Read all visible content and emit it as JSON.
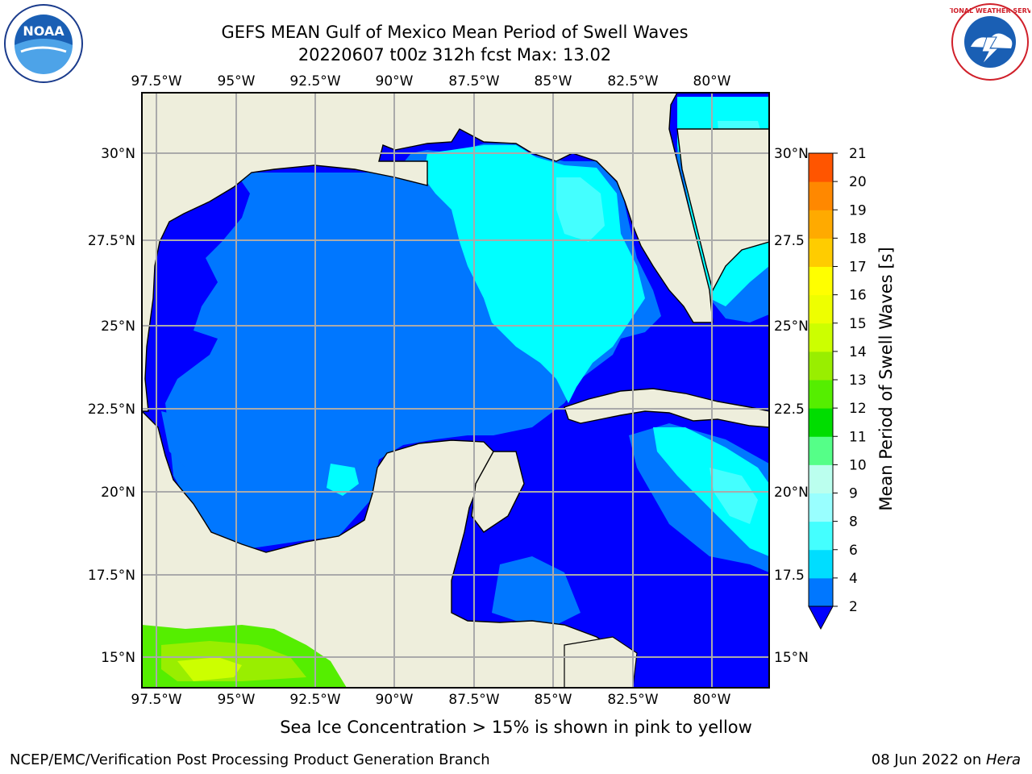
{
  "header": {
    "title": "GEFS MEAN Gulf of Mexico Mean Period of Swell Waves",
    "subtitle": "20220607 t00z 312h fcst   Max: 13.02"
  },
  "map": {
    "lon_labels": [
      "97.5°W",
      "95°W",
      "92.5°W",
      "90°W",
      "87.5°W",
      "85°W",
      "82.5°W",
      "80°W"
    ],
    "lat_labels": [
      "30°N",
      "27.5°N",
      "25°N",
      "22.5°N",
      "20°N",
      "17.5°N",
      "15°N"
    ],
    "lat_labels_right": [
      "30°N",
      "27.5",
      "25°N",
      "22.5",
      "20°N",
      "17.5",
      "15°N"
    ],
    "land_color": "#eeeedc",
    "ocean_color": "#0000ff"
  },
  "colorbar": {
    "label": "Mean Period of Swell Waves [s]",
    "ticks": [
      "2",
      "4",
      "6",
      "8",
      "9",
      "10",
      "11",
      "12",
      "13",
      "14",
      "15",
      "16",
      "17",
      "18",
      "19",
      "20",
      "21"
    ],
    "colors": [
      "#0077ff",
      "#00ddff",
      "#44ffff",
      "#99ffff",
      "#bbffee",
      "#55ff88",
      "#00dd00",
      "#55ee00",
      "#99ee00",
      "#ccff00",
      "#eeff00",
      "#ffff00",
      "#ffcc00",
      "#ffaa00",
      "#ff8800",
      "#ff5500",
      "#ff2200",
      "#ff0000"
    ]
  },
  "note": "Sea Ice Concentration > 15% is shown in pink to yellow",
  "footer": {
    "left": "NCEP/EMC/Verification Post Processing Product Generation Branch",
    "right_date": "08 Jun 2022 on ",
    "right_host": "Hera"
  },
  "logos": {
    "noaa_text": "NOAA",
    "nws_text": "NATIONAL WEATHER SERVICE"
  }
}
